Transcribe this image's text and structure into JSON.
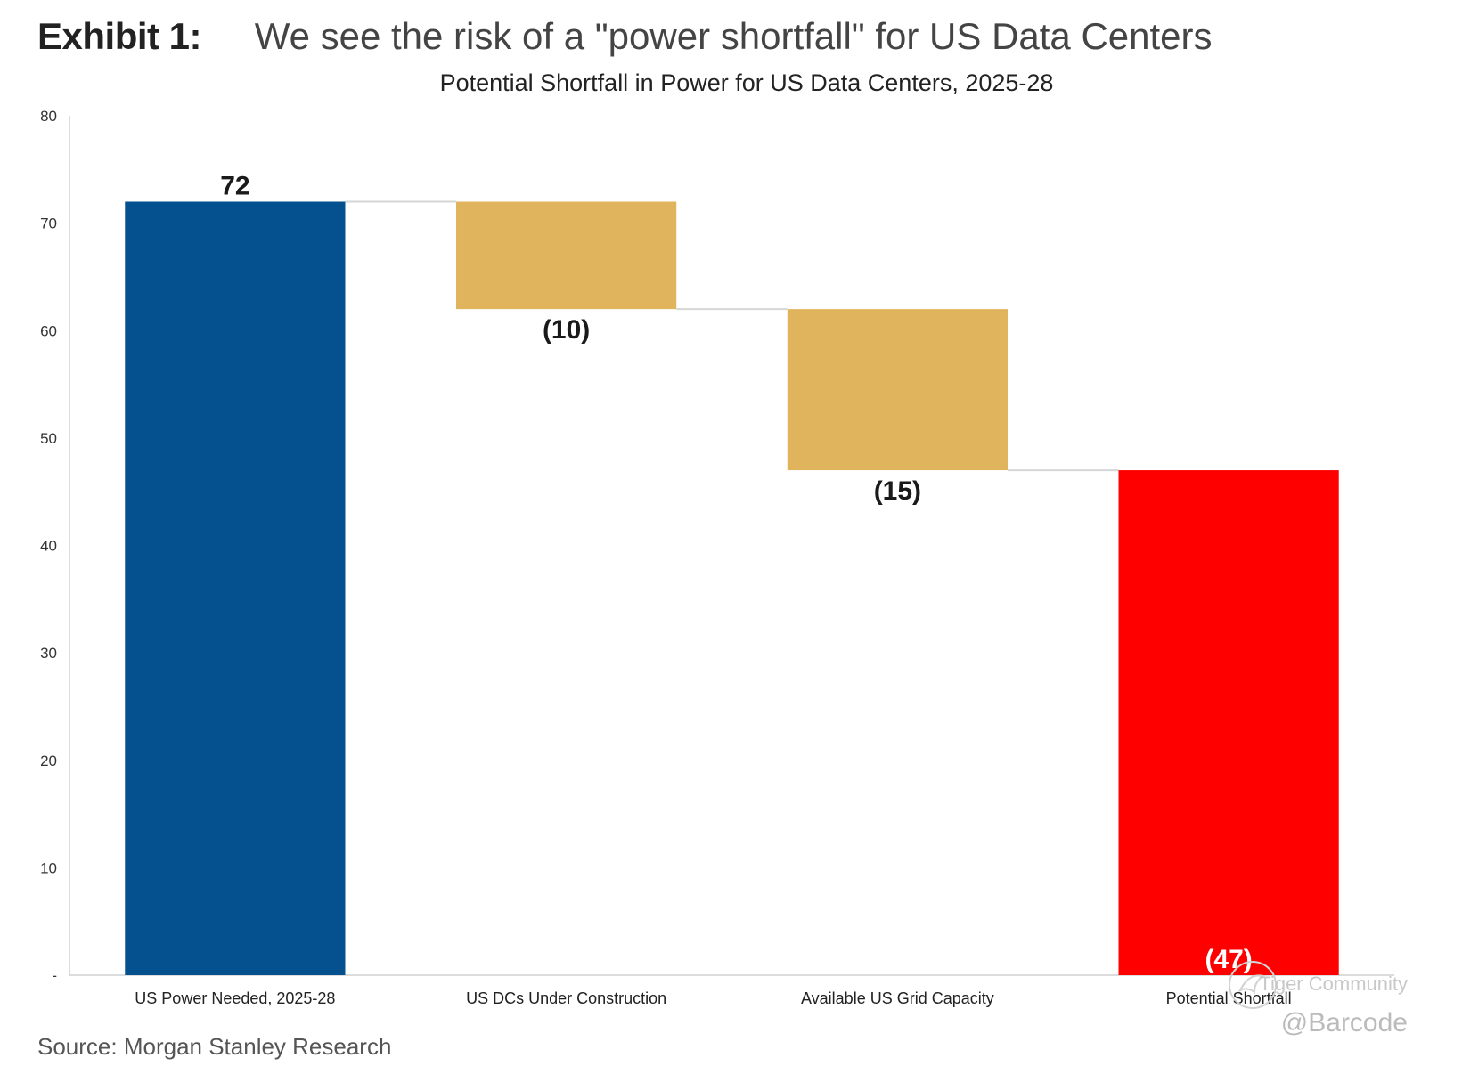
{
  "exhibit": {
    "label": "Exhibit 1:",
    "headline": "We see the risk of a \"power shortfall\" for US Data Centers"
  },
  "chart_data": {
    "type": "bar",
    "subtype": "waterfall",
    "title": "Potential Shortfall in Power for US Data Centers, 2025-28",
    "xlabel": "",
    "ylabel": "",
    "categories": [
      "US Power Needed, 2025-28",
      "US DCs Under Construction",
      "Available US Grid Capacity",
      "Potential Shortfall"
    ],
    "values": [
      72,
      -10,
      -15,
      47
    ],
    "data_labels": [
      "72",
      "(10)",
      "(15)",
      "(47)"
    ],
    "bar_colors": [
      "#05508e",
      "#e0b45c",
      "#e0b45c",
      "#ff0000"
    ],
    "ylim": [
      0,
      80
    ],
    "yticks": [
      0,
      10,
      20,
      30,
      40,
      50,
      60,
      70,
      80
    ],
    "ytick_labels": [
      "-",
      "10",
      "20",
      "30",
      "40",
      "50",
      "60",
      "70",
      "80"
    ],
    "grid": false,
    "connectors": true,
    "legend": "none"
  },
  "source": "Source: Morgan Stanley Research",
  "watermark": {
    "brand": "Tiger Community",
    "handle": "@Barcode"
  },
  "colors": {
    "axis": "#d0d0d0",
    "connector": "#d6d6d6",
    "text": "#222222"
  }
}
